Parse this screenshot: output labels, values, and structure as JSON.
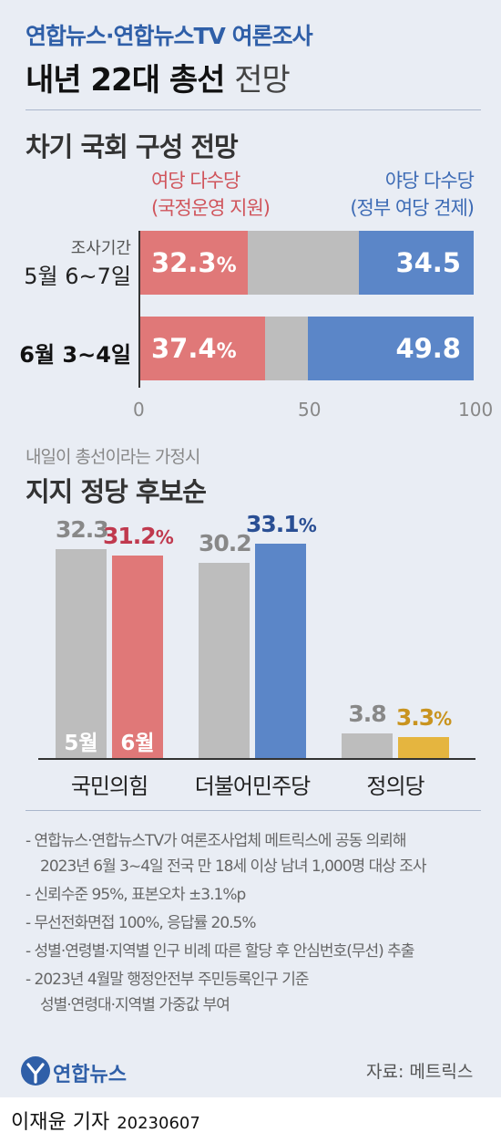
{
  "header": {
    "subtitle": "연합뉴스·연합뉴스TV 여론조사",
    "title_bold": "내년 22대 총선",
    "title_light": "전망"
  },
  "section1": {
    "title": "차기 국회 구성 전망",
    "legend_left_line1": "여당 다수당",
    "legend_left_line2": "(국정운영 지원)",
    "legend_right_line1": "야당 다수당",
    "legend_right_line2": "(정부 여당 견제)",
    "row1_small": "조사기간",
    "row1_big": "5월 6~7일",
    "row2": "6월 3~4일",
    "left_value_suffix": "%"
  },
  "section2": {
    "pretitle": "내일이 총선이라는 가정시",
    "title": "지지 정당 후보순",
    "month_may": "5월",
    "month_june": "6월",
    "pct_suffix": "%"
  },
  "notes": [
    "- 연합뉴스·연합뉴스TV가 여론조사업체 메트릭스에 공동 의뢰해\n2023년 6월 3~4일 전국 만 18세 이상 남녀 1,000명 대상 조사",
    "- 신뢰수준 95%, 표본오차 ±3.1%p",
    "- 무선전화면접 100%, 응답률 20.5%",
    "- 성별·연령별·지역별 인구 비례 따른 할당 후 안심번호(무선) 추출",
    "- 2023년 4월말 행정안전부 주민등록인구 기준\n성별·연령대·지역별 가중값 부여"
  ],
  "footer": {
    "logo_text": "연합뉴스",
    "source": "자료: 메트릭스",
    "reporter": "이재윤 기자",
    "date": "20230607"
  },
  "colors": {
    "ruling": "#e07878",
    "opposition": "#5b86c8",
    "neutral": "#bdbdbd",
    "justice": "#e5b53f",
    "header_blue": "#2f5fa8",
    "ppp_value": "#c0394e",
    "dp_value": "#2a4f94",
    "jp_value": "#c99420",
    "grey_value": "#888888"
  },
  "chart_data": [
    {
      "type": "bar",
      "orientation": "horizontal",
      "stacked": true,
      "title": "차기 국회 구성 전망",
      "categories": [
        "5월 6~7일",
        "6월 3~4일"
      ],
      "series": [
        {
          "name": "여당 다수당 (국정운영 지원)",
          "values": [
            32.3,
            37.4
          ]
        },
        {
          "name": "야당 다수당 (정부 여당 견제)",
          "values": [
            34.5,
            49.8
          ]
        }
      ],
      "xlim": [
        0,
        100
      ],
      "ticks": [
        0,
        50,
        100
      ]
    },
    {
      "type": "bar",
      "title": "지지 정당 후보순",
      "categories": [
        "국민의힘",
        "더불어민주당",
        "정의당"
      ],
      "series": [
        {
          "name": "5월",
          "values": [
            32.3,
            30.2,
            3.8
          ]
        },
        {
          "name": "6월",
          "values": [
            31.2,
            33.1,
            3.3
          ]
        }
      ]
    }
  ]
}
